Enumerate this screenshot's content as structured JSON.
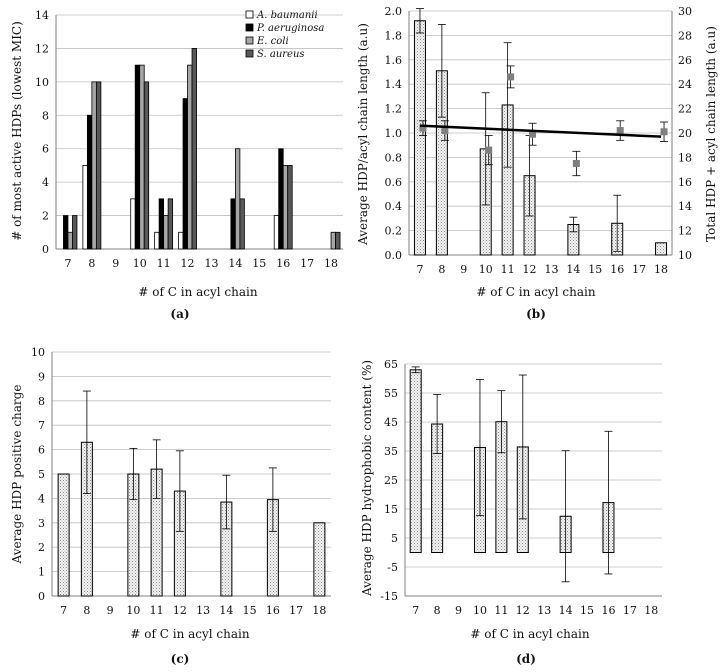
{
  "colors": {
    "a_baumanii": "#ffffff",
    "p_aeruginosa": "#000000",
    "e_coli": "#a6a6a6",
    "s_aureus": "#595959",
    "stipple_bar": "#e6e6e6",
    "marker": "#7f7f7f"
  },
  "chart_data": [
    {
      "panel": "(a)",
      "type": "bar",
      "xlabel": "# of C in acyl chain",
      "ylabel": "# of most active HDPs (lowest MIC)",
      "categories": [
        "7",
        "8",
        "9",
        "10",
        "11",
        "12",
        "13",
        "14",
        "15",
        "16",
        "17",
        "18"
      ],
      "ylim": [
        0,
        14
      ],
      "yticks": [
        0,
        2,
        4,
        6,
        8,
        10,
        12,
        14
      ],
      "grid": true,
      "legend_position": "top-right",
      "series": [
        {
          "name": "A. baumanii",
          "values": [
            0,
            5,
            0,
            3,
            1,
            1,
            0,
            0,
            0,
            2,
            0,
            0
          ]
        },
        {
          "name": "P. aeruginosa",
          "values": [
            2,
            8,
            0,
            11,
            3,
            9,
            0,
            3,
            0,
            6,
            0,
            0
          ]
        },
        {
          "name": "E. coli",
          "values": [
            1,
            10,
            0,
            11,
            2,
            11,
            0,
            6,
            0,
            5,
            0,
            1
          ]
        },
        {
          "name": "S. aureus",
          "values": [
            2,
            10,
            0,
            10,
            3,
            12,
            0,
            3,
            0,
            5,
            0,
            1
          ]
        }
      ]
    },
    {
      "panel": "(b)",
      "type": "bar",
      "xlabel": "# of C in acyl chain",
      "ylabel": "Average HDP/acyl chain length (a.u)",
      "y2label": "Total HDP + acyl chain length (a.u)",
      "categories": [
        "7",
        "8",
        "9",
        "10",
        "11",
        "12",
        "13",
        "14",
        "15",
        "16",
        "17",
        "18"
      ],
      "ylim": [
        0,
        2.0
      ],
      "yticks": [
        "0.0",
        "0.2",
        "0.4",
        "0.6",
        "0.8",
        "1.0",
        "1.2",
        "1.4",
        "1.6",
        "1.8",
        "2.0"
      ],
      "y2lim": [
        10,
        30
      ],
      "y2ticks": [
        10,
        12,
        14,
        16,
        18,
        20,
        22,
        24,
        26,
        28,
        30
      ],
      "grid": true,
      "bars": {
        "values": [
          1.92,
          1.51,
          null,
          0.87,
          1.23,
          0.65,
          null,
          0.25,
          null,
          0.26,
          null,
          0.1
        ],
        "error": [
          0.1,
          0.38,
          null,
          0.46,
          0.51,
          0.33,
          null,
          0.06,
          null,
          0.23,
          null,
          0.0
        ]
      },
      "markers": {
        "values": [
          20.4,
          20.2,
          null,
          18.6,
          24.6,
          19.9,
          null,
          17.5,
          null,
          20.2,
          null,
          20.1
        ],
        "error": [
          0.6,
          0.8,
          null,
          1.2,
          0.9,
          0.9,
          null,
          1.0,
          null,
          0.8,
          null,
          0.8
        ]
      },
      "trendline": {
        "x": [
          7,
          18
        ],
        "y": [
          20.6,
          19.7
        ]
      }
    },
    {
      "panel": "(c)",
      "type": "bar",
      "xlabel": "# of C in acyl chain",
      "ylabel": "Average HDP positive charge",
      "categories": [
        "7",
        "8",
        "9",
        "10",
        "11",
        "12",
        "13",
        "14",
        "15",
        "16",
        "17",
        "18"
      ],
      "ylim": [
        0,
        10
      ],
      "yticks": [
        0,
        1,
        2,
        3,
        4,
        5,
        6,
        7,
        8,
        9,
        10
      ],
      "grid": true,
      "bars": {
        "values": [
          5.0,
          6.3,
          null,
          5.0,
          5.2,
          4.3,
          null,
          3.85,
          null,
          3.95,
          null,
          3.0
        ],
        "error": [
          0.0,
          2.1,
          null,
          1.05,
          1.2,
          1.65,
          null,
          1.1,
          null,
          1.3,
          null,
          0.0
        ]
      }
    },
    {
      "panel": "(d)",
      "type": "bar",
      "xlabel": "# of C in acyl chain",
      "ylabel": "Average HDP hydrophobic content (%)",
      "categories": [
        "7",
        "8",
        "9",
        "10",
        "11",
        "12",
        "13",
        "14",
        "15",
        "16",
        "17",
        "18"
      ],
      "ylim": [
        -15,
        65
      ],
      "yticks": [
        -15,
        -5,
        5,
        15,
        25,
        35,
        45,
        55,
        65
      ],
      "grid": true,
      "bars": {
        "values": [
          63,
          44.3,
          null,
          36.2,
          45.1,
          36.4,
          null,
          12.5,
          null,
          17.2,
          null,
          null
        ],
        "error": [
          1,
          10.2,
          null,
          23.5,
          10.7,
          24.8,
          null,
          22.6,
          null,
          24.6,
          null,
          null
        ]
      }
    }
  ]
}
